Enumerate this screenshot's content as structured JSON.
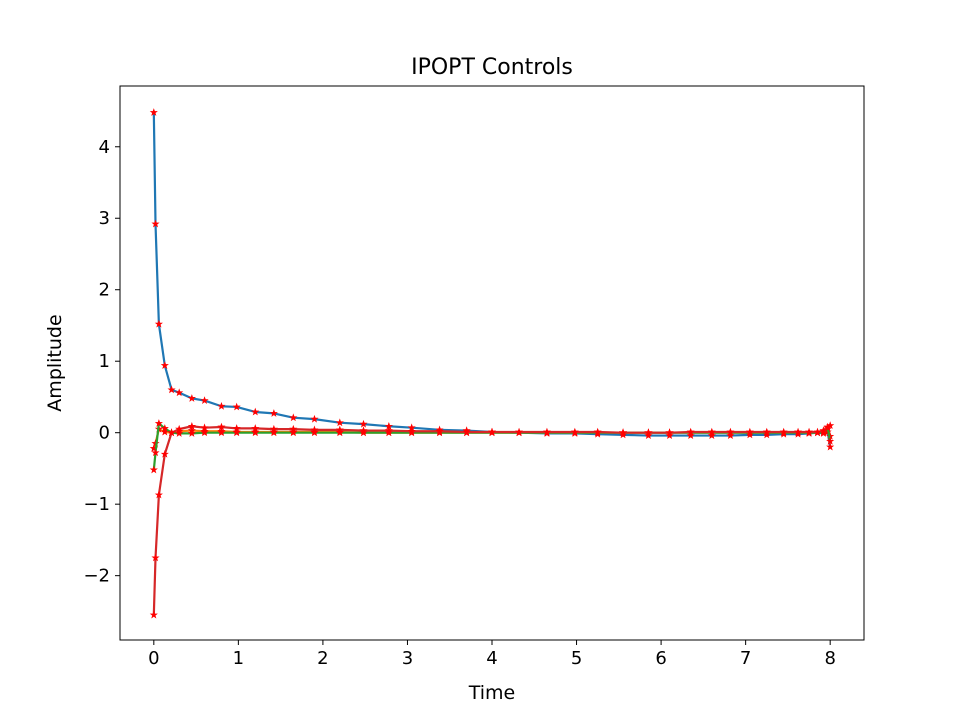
{
  "chart_data": {
    "type": "line",
    "title": "IPOPT Controls",
    "xlabel": "Time",
    "ylabel": "Amplitude",
    "xlim": [
      -0.4,
      8.4
    ],
    "ylim": [
      -2.9,
      4.85
    ],
    "xticks": [
      0,
      1,
      2,
      3,
      4,
      5,
      6,
      7,
      8
    ],
    "yticks": [
      -2,
      -1,
      0,
      1,
      2,
      3,
      4
    ],
    "xtick_labels": [
      "0",
      "1",
      "2",
      "3",
      "4",
      "5",
      "6",
      "7",
      "8"
    ],
    "ytick_labels": [
      "−2",
      "−1",
      "0",
      "1",
      "2",
      "3",
      "4"
    ],
    "grid": false,
    "legend": "none",
    "marker": {
      "shape": "star",
      "color": "#ff0000"
    },
    "series": [
      {
        "color": "#1f77b4",
        "points": [
          [
            0.0,
            4.48
          ],
          [
            0.02,
            2.92
          ],
          [
            0.06,
            1.52
          ],
          [
            0.13,
            0.94
          ],
          [
            0.21,
            0.6
          ],
          [
            0.3,
            0.56
          ],
          [
            0.45,
            0.48
          ],
          [
            0.6,
            0.45
          ],
          [
            0.8,
            0.37
          ],
          [
            0.98,
            0.36
          ],
          [
            1.2,
            0.29
          ],
          [
            1.42,
            0.27
          ],
          [
            1.65,
            0.21
          ],
          [
            1.9,
            0.19
          ],
          [
            2.2,
            0.14
          ],
          [
            2.48,
            0.12
          ],
          [
            2.78,
            0.09
          ],
          [
            3.05,
            0.07
          ],
          [
            3.38,
            0.04
          ],
          [
            3.7,
            0.03
          ],
          [
            4.0,
            0.01
          ],
          [
            4.32,
            0.0
          ],
          [
            4.65,
            -0.01
          ],
          [
            4.98,
            -0.01
          ],
          [
            5.25,
            -0.02
          ],
          [
            5.55,
            -0.03
          ],
          [
            5.85,
            -0.04
          ],
          [
            6.1,
            -0.04
          ],
          [
            6.35,
            -0.04
          ],
          [
            6.6,
            -0.04
          ],
          [
            6.82,
            -0.04
          ],
          [
            7.05,
            -0.03
          ],
          [
            7.25,
            -0.03
          ],
          [
            7.45,
            -0.02
          ],
          [
            7.62,
            -0.02
          ],
          [
            7.75,
            -0.01
          ],
          [
            7.85,
            0.0
          ],
          [
            7.92,
            -0.01
          ],
          [
            7.97,
            0.01
          ],
          [
            8.0,
            -0.2
          ]
        ]
      },
      {
        "color": "#ff7f0e",
        "points": [
          [
            0.0,
            -0.22
          ],
          [
            0.02,
            -0.15
          ],
          [
            0.06,
            0.05
          ],
          [
            0.13,
            0.01
          ],
          [
            0.21,
            0.0
          ],
          [
            0.3,
            0.02
          ],
          [
            0.45,
            0.03
          ],
          [
            0.6,
            0.02
          ],
          [
            0.8,
            0.02
          ],
          [
            0.98,
            0.01
          ],
          [
            1.2,
            0.01
          ],
          [
            1.42,
            0.01
          ],
          [
            1.65,
            0.01
          ],
          [
            1.9,
            0.01
          ],
          [
            2.2,
            0.01
          ],
          [
            2.48,
            0.0
          ],
          [
            2.78,
            0.0
          ],
          [
            3.05,
            0.0
          ],
          [
            3.38,
            0.0
          ],
          [
            3.7,
            0.0
          ],
          [
            4.0,
            0.0
          ],
          [
            4.32,
            0.0
          ],
          [
            4.65,
            0.0
          ],
          [
            4.98,
            0.0
          ],
          [
            5.25,
            0.0
          ],
          [
            5.55,
            0.0
          ],
          [
            5.85,
            0.0
          ],
          [
            6.1,
            0.0
          ],
          [
            6.35,
            0.0
          ],
          [
            6.6,
            0.0
          ],
          [
            6.82,
            0.0
          ],
          [
            7.05,
            0.0
          ],
          [
            7.25,
            0.0
          ],
          [
            7.45,
            0.0
          ],
          [
            7.62,
            0.0
          ],
          [
            7.75,
            0.0
          ],
          [
            7.85,
            0.0
          ],
          [
            7.92,
            0.01
          ],
          [
            7.97,
            0.05
          ],
          [
            8.0,
            -0.05
          ]
        ]
      },
      {
        "color": "#2ca02c",
        "points": [
          [
            0.0,
            -0.52
          ],
          [
            0.02,
            -0.28
          ],
          [
            0.06,
            0.13
          ],
          [
            0.13,
            0.06
          ],
          [
            0.21,
            0.0
          ],
          [
            0.3,
            -0.01
          ],
          [
            0.45,
            -0.01
          ],
          [
            0.6,
            0.0
          ],
          [
            0.8,
            0.0
          ],
          [
            0.98,
            0.0
          ],
          [
            1.2,
            0.0
          ],
          [
            1.42,
            0.0
          ],
          [
            1.65,
            0.0
          ],
          [
            1.9,
            0.0
          ],
          [
            2.2,
            0.0
          ],
          [
            2.48,
            0.0
          ],
          [
            2.78,
            0.0
          ],
          [
            3.05,
            0.0
          ],
          [
            3.38,
            0.0
          ],
          [
            3.7,
            0.0
          ],
          [
            4.0,
            0.0
          ],
          [
            4.32,
            0.0
          ],
          [
            4.65,
            0.0
          ],
          [
            4.98,
            0.0
          ],
          [
            5.25,
            0.0
          ],
          [
            5.55,
            0.0
          ],
          [
            5.85,
            0.0
          ],
          [
            6.1,
            0.0
          ],
          [
            6.35,
            0.0
          ],
          [
            6.6,
            0.0
          ],
          [
            6.82,
            0.0
          ],
          [
            7.05,
            0.0
          ],
          [
            7.25,
            0.0
          ],
          [
            7.45,
            0.0
          ],
          [
            7.62,
            0.0
          ],
          [
            7.75,
            0.0
          ],
          [
            7.85,
            0.0
          ],
          [
            7.92,
            0.0
          ],
          [
            7.97,
            0.08
          ],
          [
            8.0,
            -0.12
          ]
        ]
      },
      {
        "color": "#d62728",
        "points": [
          [
            0.0,
            -2.55
          ],
          [
            0.02,
            -1.75
          ],
          [
            0.06,
            -0.87
          ],
          [
            0.13,
            -0.3
          ],
          [
            0.21,
            0.0
          ],
          [
            0.3,
            0.05
          ],
          [
            0.45,
            0.09
          ],
          [
            0.6,
            0.07
          ],
          [
            0.8,
            0.08
          ],
          [
            0.98,
            0.06
          ],
          [
            1.2,
            0.06
          ],
          [
            1.42,
            0.05
          ],
          [
            1.65,
            0.05
          ],
          [
            1.9,
            0.04
          ],
          [
            2.2,
            0.04
          ],
          [
            2.48,
            0.03
          ],
          [
            2.78,
            0.03
          ],
          [
            3.05,
            0.02
          ],
          [
            3.38,
            0.02
          ],
          [
            3.7,
            0.01
          ],
          [
            4.0,
            0.01
          ],
          [
            4.32,
            0.01
          ],
          [
            4.65,
            0.01
          ],
          [
            4.98,
            0.01
          ],
          [
            5.25,
            0.01
          ],
          [
            5.55,
            0.0
          ],
          [
            5.85,
            0.0
          ],
          [
            6.1,
            0.0
          ],
          [
            6.35,
            0.01
          ],
          [
            6.6,
            0.01
          ],
          [
            6.82,
            0.01
          ],
          [
            7.05,
            0.01
          ],
          [
            7.25,
            0.01
          ],
          [
            7.45,
            0.01
          ],
          [
            7.62,
            0.01
          ],
          [
            7.75,
            0.01
          ],
          [
            7.85,
            0.01
          ],
          [
            7.92,
            0.03
          ],
          [
            7.97,
            0.07
          ],
          [
            8.0,
            0.1
          ]
        ]
      }
    ]
  }
}
